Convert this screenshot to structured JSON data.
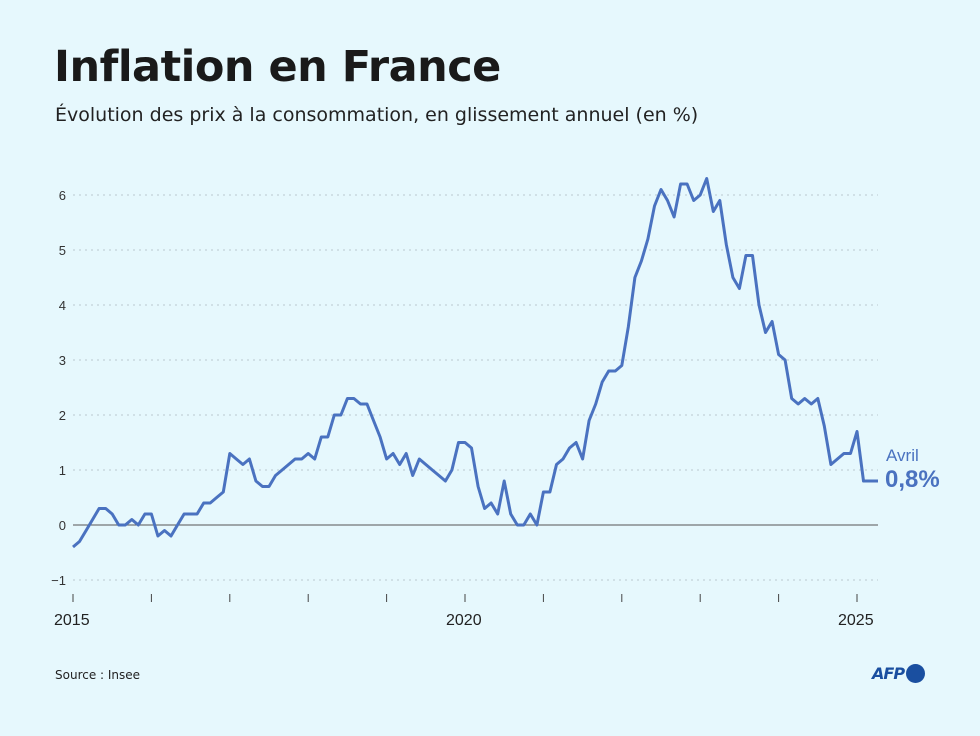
{
  "title": "Inflation en France",
  "subtitle": "Évolution des prix à la consommation, en glissement annuel (en %)",
  "source": "Source : Insee",
  "logo": "AFP",
  "colors": {
    "line": "#4a72c0",
    "background": "#e6f8fd",
    "logo": "#1a4fa0"
  },
  "chart_data": {
    "type": "line",
    "title": "Inflation en France",
    "ylabel": "",
    "xlabel": "",
    "ylim": [
      -1.2,
      6.4
    ],
    "yticks": [
      -1,
      0,
      1,
      2,
      3,
      4,
      5,
      6
    ],
    "ytick_labels": [
      "−1",
      "0",
      "1",
      "2",
      "3",
      "4",
      "5",
      "6"
    ],
    "xtick_years": [
      2015,
      2016,
      2017,
      2018,
      2019,
      2020,
      2021,
      2022,
      2023,
      2024,
      2025
    ],
    "xtick_labels": {
      "2015": "2015",
      "2020": "2020",
      "2025": "2025"
    },
    "grid": "horizontal-dotted",
    "start": "2015-01",
    "frequency": "monthly",
    "series": [
      {
        "values": [
          -0.4,
          -0.3,
          -0.1,
          0.1,
          0.3,
          0.3,
          0.2,
          0.0,
          0.0,
          0.1,
          0.0,
          0.2,
          0.2,
          -0.2,
          -0.1,
          -0.2,
          0.0,
          0.2,
          0.2,
          0.2,
          0.4,
          0.4,
          0.5,
          0.6,
          1.3,
          1.2,
          1.1,
          1.2,
          0.8,
          0.7,
          0.7,
          0.9,
          1.0,
          1.1,
          1.2,
          1.2,
          1.3,
          1.2,
          1.6,
          1.6,
          2.0,
          2.0,
          2.3,
          2.3,
          2.2,
          2.2,
          1.9,
          1.6,
          1.2,
          1.3,
          1.1,
          1.3,
          0.9,
          1.2,
          1.1,
          1.0,
          0.9,
          0.8,
          1.0,
          1.5,
          1.5,
          1.4,
          0.7,
          0.3,
          0.4,
          0.2,
          0.8,
          0.2,
          0.0,
          0.0,
          0.2,
          0.0,
          0.6,
          0.6,
          1.1,
          1.2,
          1.4,
          1.5,
          1.2,
          1.9,
          2.2,
          2.6,
          2.8,
          2.8,
          2.9,
          3.6,
          4.5,
          4.8,
          5.2,
          5.8,
          6.1,
          5.9,
          5.6,
          6.2,
          6.2,
          5.9,
          6.0,
          6.3,
          5.7,
          5.9,
          5.1,
          4.5,
          4.3,
          4.9,
          4.9,
          4.0,
          3.5,
          3.7,
          3.1,
          3.0,
          2.3,
          2.2,
          2.3,
          2.2,
          2.3,
          1.8,
          1.1,
          1.2,
          1.3,
          1.3,
          1.7,
          0.8,
          0.8,
          0.8
        ]
      }
    ],
    "annotation": {
      "label": "Avril",
      "value": "0,8%"
    }
  }
}
